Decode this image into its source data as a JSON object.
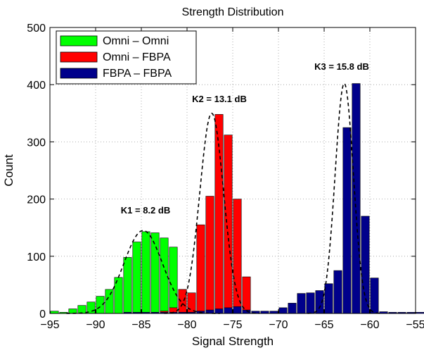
{
  "chart_data": {
    "type": "bar",
    "title": "Strength Distribution",
    "xlabel": "Signal Strength",
    "ylabel": "Count",
    "xlim": [
      -95,
      -55
    ],
    "ylim": [
      0,
      500
    ],
    "x_ticks": [
      "−95",
      "−90",
      "−85",
      "−80",
      "−75",
      "−70",
      "−65",
      "−60",
      "−55"
    ],
    "y_ticks": [
      "0",
      "100",
      "200",
      "300",
      "400",
      "500"
    ],
    "bin_width": 1,
    "grid": "dotted, major ticks",
    "legend_position": "top-left",
    "series": [
      {
        "name": "Omni – Omni",
        "color": "#00ff00",
        "x": [
          -95,
          -94,
          -93,
          -92,
          -91,
          -90,
          -89,
          -88,
          -87,
          -86,
          -85,
          -84,
          -83,
          -82,
          -81,
          -80,
          -79
        ],
        "values": [
          4,
          2,
          8,
          14,
          20,
          30,
          42,
          63,
          98,
          125,
          143,
          141,
          132,
          116,
          42,
          28,
          5
        ]
      },
      {
        "name": "Omni – FBPA",
        "color": "#ff0000",
        "x": [
          -84,
          -83,
          -82,
          -81,
          -80,
          -79,
          -78,
          -77,
          -76,
          -75,
          -74
        ],
        "values": [
          2,
          4,
          10,
          42,
          36,
          155,
          205,
          348,
          312,
          200,
          64
        ]
      },
      {
        "name": "FBPA – FBPA",
        "color": "#00008b",
        "x": [
          -87,
          -86,
          -85,
          -84,
          -83,
          -82,
          -81,
          -80,
          -79,
          -78,
          -77,
          -76,
          -75,
          -74,
          -73,
          -72,
          -71,
          -70,
          -69,
          -68,
          -67,
          -66,
          -65,
          -64,
          -63,
          -62,
          -61,
          -60,
          -59,
          -58,
          -57,
          -56,
          -55
        ],
        "values": [
          2,
          2,
          2,
          2,
          2,
          2,
          2,
          2,
          4,
          6,
          8,
          10,
          12,
          6,
          4,
          4,
          4,
          10,
          18,
          35,
          36,
          40,
          52,
          75,
          325,
          402,
          170,
          62,
          3,
          2,
          2,
          2,
          2
        ]
      }
    ],
    "fit_curves": [
      {
        "label": "K1 = 8.2 dB",
        "mean": -84.8,
        "sigma": 2.1,
        "peak": 145
      },
      {
        "label": "K2 = 13.1 dB",
        "mean": -77.3,
        "sigma": 1.3,
        "peak": 350
      },
      {
        "label": "K3 = 15.8 dB",
        "mean": -62.8,
        "sigma": 1.0,
        "peak": 402
      }
    ],
    "annotations": [
      "K1 = 8.2 dB",
      "K2 = 13.1 dB",
      "K3 = 15.8 dB"
    ]
  }
}
